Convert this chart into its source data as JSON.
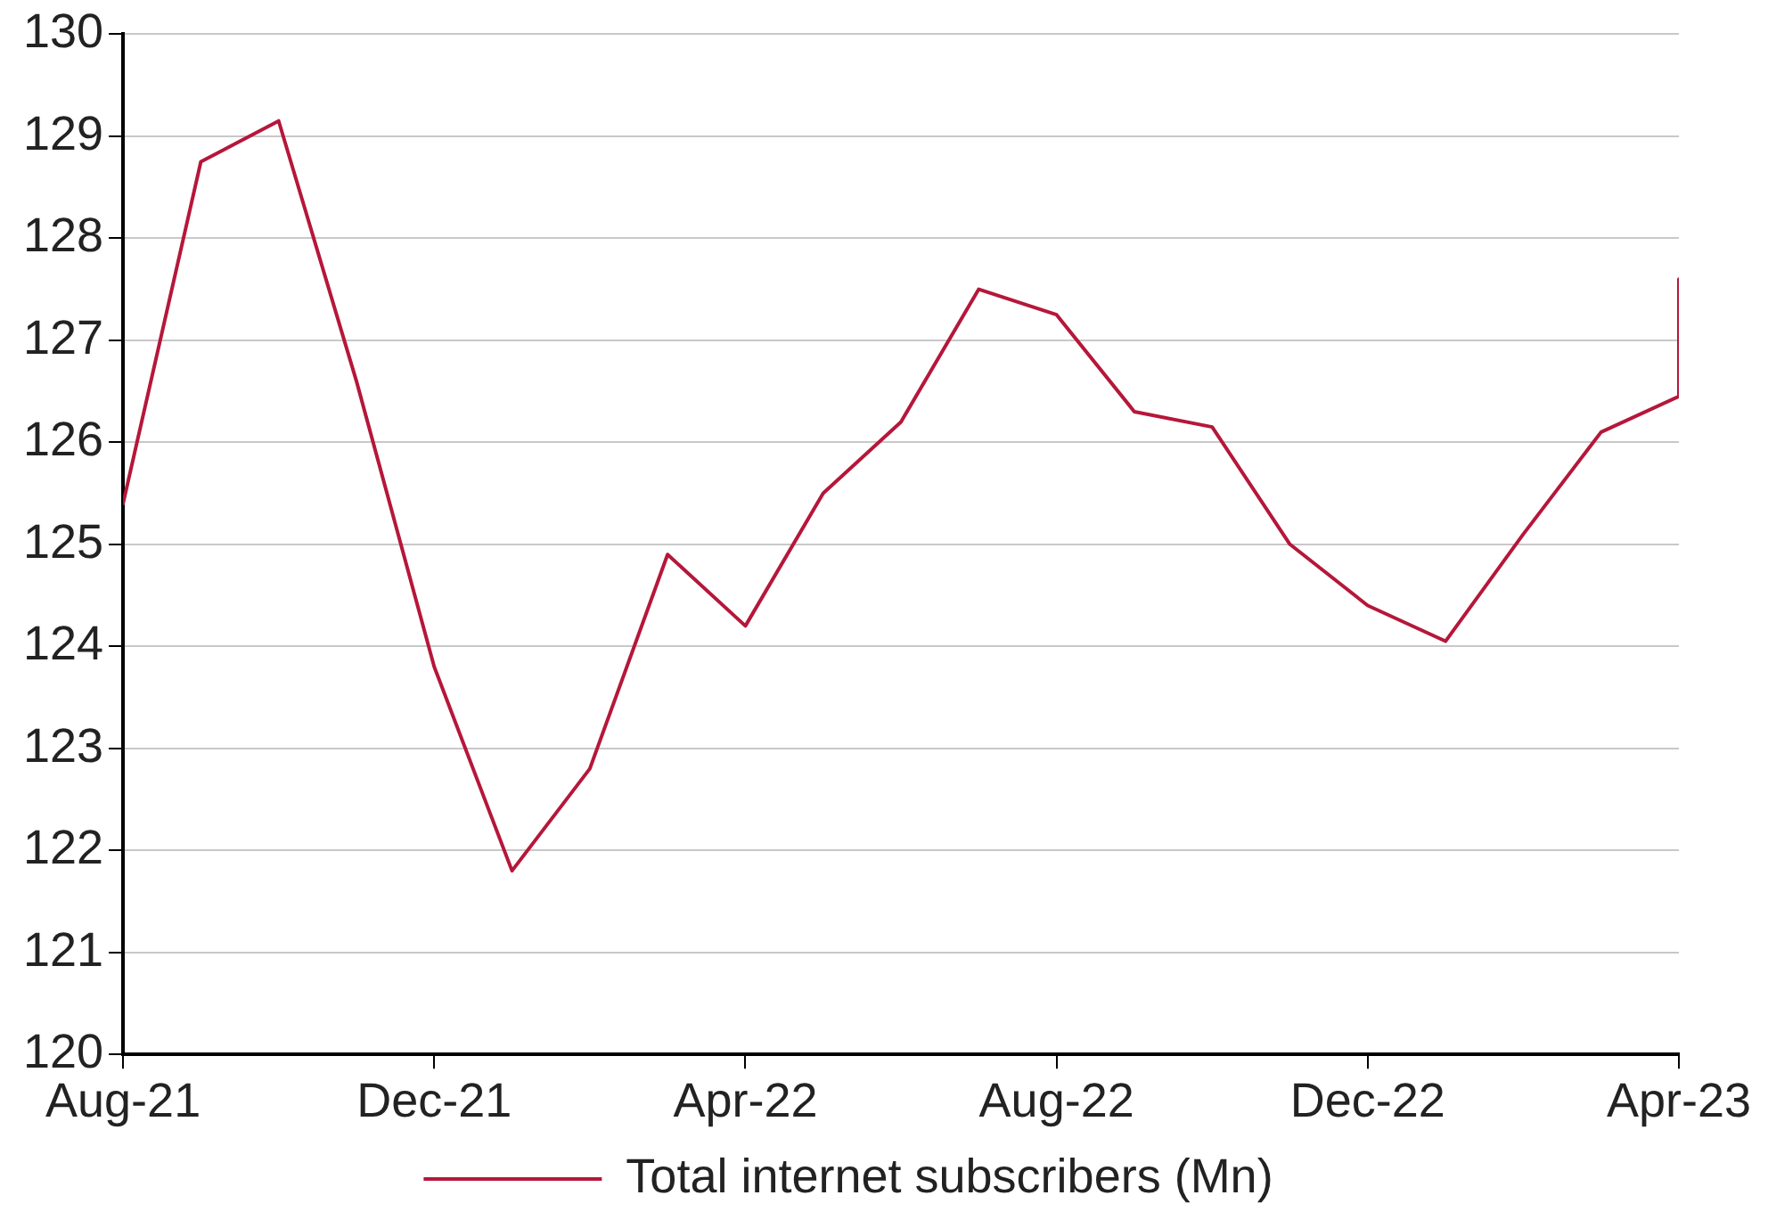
{
  "chart_data": {
    "type": "line",
    "x": [
      "2021-08",
      "2021-09",
      "2021-10",
      "2021-11",
      "2021-12",
      "2022-01",
      "2022-02",
      "2022-03",
      "2022-04",
      "2022-05",
      "2022-06",
      "2022-07",
      "2022-08",
      "2022-09",
      "2022-10",
      "2022-11",
      "2022-12",
      "2023-01",
      "2023-02",
      "2023-03",
      "2023-04",
      "2023-04"
    ],
    "series": [
      {
        "name": "Total internet subscribers (Mn)",
        "color": "#b5173a",
        "values": [
          125.4,
          128.75,
          129.15,
          126.6,
          123.8,
          121.8,
          122.8,
          124.9,
          124.2,
          125.5,
          126.2,
          127.5,
          127.25,
          126.3,
          126.15,
          125.0,
          124.4,
          124.05,
          125.1,
          126.1,
          126.45,
          127.6
        ]
      }
    ],
    "xlim": [
      "2021-08",
      "2023-04"
    ],
    "xticks": [
      {
        "value": "2021-08",
        "label": "Aug-21"
      },
      {
        "value": "2021-12",
        "label": "Dec-21"
      },
      {
        "value": "2022-04",
        "label": "Apr-22"
      },
      {
        "value": "2022-08",
        "label": "Aug-22"
      },
      {
        "value": "2022-12",
        "label": "Dec-22"
      },
      {
        "value": "2023-04",
        "label": "Apr-23"
      }
    ],
    "ylim": [
      120,
      130
    ],
    "yticks": [
      120,
      121,
      122,
      123,
      124,
      125,
      126,
      127,
      128,
      129,
      130
    ],
    "grid": "y",
    "legend": "bottom",
    "marker": "none",
    "line_style": "solid"
  }
}
